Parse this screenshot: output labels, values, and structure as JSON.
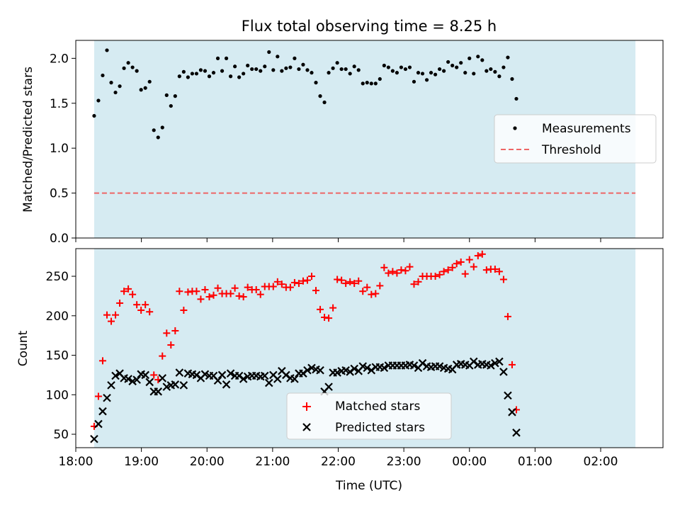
{
  "chart_data": [
    {
      "type": "scatter",
      "title": "Flux total observing time = 8.25 h",
      "xlabel": "",
      "ylabel": "Matched/Predicted stars",
      "xlim": [
        18.0,
        26.95
      ],
      "ylim": [
        0,
        2.2
      ],
      "shaded_span": [
        18.28,
        26.53
      ],
      "yticks": [
        0.0,
        0.5,
        1.0,
        1.5,
        2.0
      ],
      "ytick_labels": [
        "0.0",
        "0.5",
        "1.0",
        "1.5",
        "2.0"
      ],
      "legend": {
        "position": "center-right",
        "entries": [
          "Measurements",
          "Threshold"
        ]
      },
      "threshold": 0.5,
      "series": [
        {
          "name": "Measurements",
          "color": "#000000",
          "x_start": 18.28,
          "x_step": 0.065,
          "values": [
            1.36,
            1.53,
            1.81,
            2.09,
            1.73,
            1.62,
            1.69,
            1.89,
            1.95,
            1.9,
            1.86,
            1.65,
            1.67,
            1.74,
            1.2,
            1.12,
            1.23,
            1.59,
            1.47,
            1.58,
            1.8,
            1.85,
            1.79,
            1.83,
            1.83,
            1.87,
            1.86,
            1.8,
            1.84,
            2.0,
            1.86,
            2.0,
            1.8,
            1.91,
            1.79,
            1.83,
            1.92,
            1.88,
            1.88,
            1.86,
            1.91,
            2.07,
            1.87,
            2.02,
            1.86,
            1.89,
            1.9,
            2.0,
            1.88,
            1.93,
            1.87,
            1.84,
            1.73,
            1.58,
            1.51,
            1.84,
            1.89,
            1.95,
            1.88,
            1.88,
            1.83,
            1.91,
            1.87,
            1.72,
            1.73,
            1.72,
            1.72,
            1.77,
            1.92,
            1.9,
            1.86,
            1.84,
            1.9,
            1.88,
            1.9,
            1.74,
            1.84,
            1.83,
            1.76,
            1.84,
            1.82,
            1.88,
            1.86,
            1.96,
            1.92,
            1.9,
            1.95,
            1.84,
            2.0,
            1.83,
            2.02,
            1.98,
            1.86,
            1.88,
            1.85,
            1.8,
            1.9,
            2.01,
            1.77,
            1.55
          ]
        },
        {
          "name": "Threshold",
          "color": "#ee6666",
          "y": 0.5,
          "style": "dashed"
        }
      ]
    },
    {
      "type": "scatter",
      "title": "",
      "xlabel": "Time (UTC)",
      "ylabel": "Count",
      "xlim": [
        18.0,
        26.95
      ],
      "ylim": [
        33,
        285
      ],
      "shaded_span": [
        18.28,
        26.53
      ],
      "yticks": [
        50,
        100,
        150,
        200,
        250
      ],
      "ytick_labels": [
        "50",
        "100",
        "150",
        "200",
        "250"
      ],
      "xticks": [
        18,
        19,
        20,
        21,
        22,
        23,
        24,
        25,
        26
      ],
      "xtick_labels": [
        "18:00",
        "19:00",
        "20:00",
        "21:00",
        "22:00",
        "23:00",
        "00:00",
        "01:00",
        "02:00"
      ],
      "legend": {
        "position": "lower-center",
        "entries": [
          "Matched stars",
          "Predicted stars"
        ]
      },
      "series": [
        {
          "name": "Matched stars",
          "marker": "plus",
          "color": "#ff0000",
          "x_start": 18.28,
          "x_step": 0.065,
          "values": [
            60,
            98,
            143,
            201,
            193,
            201,
            216,
            231,
            234,
            227,
            214,
            207,
            214,
            205,
            125,
            119,
            149,
            178,
            163,
            181,
            231,
            207,
            230,
            231,
            231,
            221,
            233,
            224,
            226,
            235,
            228,
            228,
            228,
            235,
            225,
            224,
            236,
            233,
            233,
            227,
            237,
            237,
            237,
            243,
            240,
            236,
            236,
            242,
            241,
            244,
            245,
            250,
            232,
            208,
            198,
            197,
            210,
            246,
            245,
            241,
            243,
            241,
            244,
            231,
            236,
            227,
            228,
            238,
            261,
            254,
            256,
            254,
            258,
            257,
            262,
            240,
            243,
            250,
            250,
            250,
            250,
            252,
            256,
            258,
            261,
            266,
            268,
            253,
            271,
            262,
            276,
            278,
            258,
            259,
            259,
            256,
            246,
            199,
            138,
            81
          ]
        },
        {
          "name": "Predicted stars",
          "marker": "x",
          "color": "#000000",
          "x_start": 18.28,
          "x_step": 0.065,
          "values": [
            44,
            63,
            79,
            96,
            112,
            124,
            127,
            121,
            120,
            117,
            119,
            126,
            125,
            116,
            104,
            104,
            121,
            110,
            112,
            113,
            128,
            112,
            127,
            126,
            125,
            121,
            126,
            124,
            124,
            118,
            125,
            113,
            127,
            124,
            124,
            120,
            123,
            124,
            124,
            123,
            124,
            115,
            125,
            120,
            130,
            125,
            121,
            120,
            127,
            127,
            131,
            134,
            132,
            131,
            104,
            110,
            128,
            128,
            130,
            131,
            129,
            133,
            130,
            136,
            134,
            131,
            135,
            135,
            134,
            137,
            137,
            137,
            137,
            137,
            138,
            137,
            134,
            140,
            136,
            135,
            136,
            136,
            134,
            133,
            132,
            138,
            139,
            138,
            137,
            142,
            138,
            139,
            138,
            137,
            140,
            142,
            129,
            99,
            78,
            52
          ]
        }
      ]
    }
  ]
}
